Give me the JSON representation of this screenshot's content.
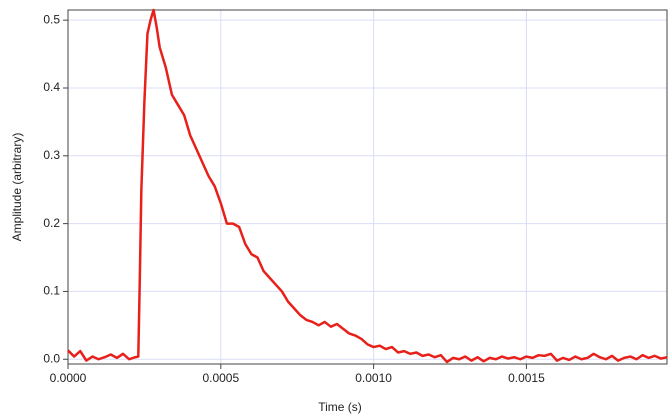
{
  "chart_data": {
    "type": "line",
    "x_label": "Time (s)",
    "y_label": "Amplitude (arbitrary)",
    "x": [
      0,
      2e-05,
      4e-05,
      6e-05,
      8e-05,
      0.0001,
      0.00012,
      0.00014,
      0.00016,
      0.00018,
      0.0002,
      0.00022,
      0.00023,
      0.000235,
      0.00024,
      0.00025,
      0.00026,
      0.00027,
      0.00028,
      0.00029,
      0.0003,
      0.00032,
      0.00034,
      0.00036,
      0.00038,
      0.0004,
      0.00042,
      0.00044,
      0.00046,
      0.00048,
      0.0005,
      0.00052,
      0.00054,
      0.00056,
      0.00058,
      0.0006,
      0.00062,
      0.00064,
      0.00066,
      0.00068,
      0.0007,
      0.00072,
      0.00074,
      0.00076,
      0.00078,
      0.0008,
      0.00082,
      0.00084,
      0.00086,
      0.00088,
      0.0009,
      0.00092,
      0.00094,
      0.00096,
      0.00098,
      0.001,
      0.00102,
      0.00104,
      0.00106,
      0.00108,
      0.0011,
      0.00112,
      0.00114,
      0.00116,
      0.00118,
      0.0012,
      0.00122,
      0.00124,
      0.00126,
      0.00128,
      0.0013,
      0.00132,
      0.00134,
      0.00136,
      0.00138,
      0.0014,
      0.00142,
      0.00144,
      0.00146,
      0.00148,
      0.0015,
      0.00152,
      0.00154,
      0.00156,
      0.00158,
      0.0016,
      0.00162,
      0.00164,
      0.00166,
      0.00168,
      0.0017,
      0.00172,
      0.00174,
      0.00176,
      0.00178,
      0.0018,
      0.00182,
      0.00184,
      0.00186,
      0.00188,
      0.0019,
      0.00192,
      0.00194,
      0.00196
    ],
    "series": [
      {
        "color": "#e8201a",
        "values": [
          0.013,
          0.004,
          0.012,
          -0.002,
          0.004,
          0.0,
          0.003,
          0.007,
          0.002,
          0.008,
          0.0,
          0.003,
          0.004,
          0.12,
          0.25,
          0.38,
          0.48,
          0.5,
          0.515,
          0.49,
          0.46,
          0.43,
          0.39,
          0.375,
          0.36,
          0.33,
          0.31,
          0.29,
          0.27,
          0.255,
          0.23,
          0.2,
          0.2,
          0.195,
          0.17,
          0.155,
          0.15,
          0.13,
          0.12,
          0.11,
          0.1,
          0.085,
          0.075,
          0.065,
          0.058,
          0.055,
          0.05,
          0.055,
          0.048,
          0.052,
          0.045,
          0.038,
          0.035,
          0.03,
          0.022,
          0.018,
          0.02,
          0.015,
          0.018,
          0.01,
          0.012,
          0.008,
          0.01,
          0.005,
          0.007,
          0.003,
          0.006,
          -0.004,
          0.002,
          0.0,
          0.004,
          -0.002,
          0.003,
          -0.003,
          0.002,
          0.0,
          0.004,
          0.001,
          0.003,
          0.0,
          0.004,
          0.002,
          0.006,
          0.005,
          0.008,
          -0.002,
          0.002,
          -0.001,
          0.004,
          0.0,
          0.002,
          0.008,
          0.003,
          0.0,
          0.005,
          -0.002,
          0.002,
          0.004,
          0.0,
          0.006,
          0.002,
          0.005,
          0.001,
          0.003
        ]
      }
    ],
    "xlim": [
      0,
      0.00196
    ],
    "ylim": [
      -0.007,
      0.515
    ],
    "xticks": [
      {
        "value": 0,
        "label": "0.0000"
      },
      0.0005,
      {
        "value": 0.001,
        "label": "0.0010"
      },
      0.0015
    ],
    "yticks": [
      {
        "value": 0,
        "label": "0.0"
      },
      0.1,
      0.2,
      0.3,
      0.4,
      0.5
    ],
    "grid": true
  }
}
